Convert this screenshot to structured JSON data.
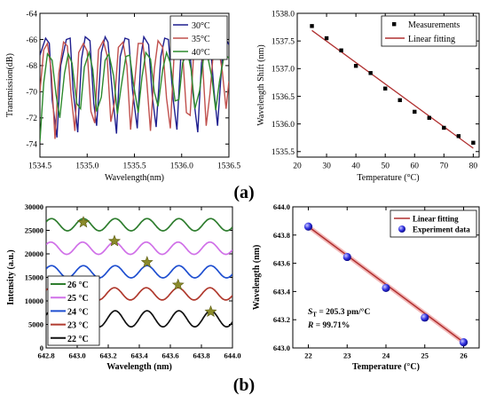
{
  "panel_labels": {
    "a": "(a)",
    "b": "(b)"
  },
  "chart_data": [
    {
      "id": "a1",
      "type": "line",
      "xlabel": "Wavelength(nm)",
      "ylabel": "Transmission(dB)",
      "xlim": [
        1534.5,
        1536.5
      ],
      "ylim": [
        -75,
        -64
      ],
      "xticks": [
        "1534.5",
        "1535.0",
        "1535.5",
        "1536.0",
        "1536.5"
      ],
      "xtick_values": [
        1534.5,
        1535.0,
        1535.5,
        1536.0,
        1536.5
      ],
      "yticks": [
        "-64",
        "-66",
        "-68",
        "-70",
        "-72",
        "-74"
      ],
      "ytick_values": [
        -64,
        -66,
        -68,
        -70,
        -72,
        -74
      ],
      "legend_position": "top-right",
      "series": [
        {
          "name": "30°C",
          "color": "#1f1f8f",
          "x": [
            1534.5,
            1534.56,
            1534.6,
            1534.63,
            1534.68,
            1534.72,
            1534.78,
            1534.82,
            1534.85,
            1534.9,
            1534.94,
            1534.98,
            1535.03,
            1535.07,
            1535.1,
            1535.15,
            1535.19,
            1535.22,
            1535.27,
            1535.31,
            1535.35,
            1535.4,
            1535.44,
            1535.48,
            1535.53,
            1535.57,
            1535.6,
            1535.65,
            1535.69,
            1535.73,
            1535.78,
            1535.82,
            1535.86,
            1535.91,
            1535.95,
            1535.99,
            1536.04,
            1536.08,
            1536.12,
            1536.17,
            1536.21,
            1536.25,
            1536.3,
            1536.34,
            1536.38,
            1536.43,
            1536.47,
            1536.5
          ],
          "y": [
            -67.2,
            -65.9,
            -66.3,
            -70.6,
            -73.5,
            -68.0,
            -66.0,
            -65.9,
            -69.8,
            -73.1,
            -67.5,
            -65.8,
            -66.1,
            -70.9,
            -72.6,
            -67.0,
            -65.8,
            -66.2,
            -70.3,
            -73.2,
            -67.3,
            -65.9,
            -66.0,
            -69.9,
            -72.8,
            -67.2,
            -65.8,
            -66.4,
            -70.4,
            -72.7,
            -67.3,
            -65.9,
            -66.0,
            -70.6,
            -72.9,
            -67.4,
            -65.8,
            -66.2,
            -70.1,
            -73.1,
            -67.8,
            -66.0,
            -65.9,
            -69.8,
            -72.6,
            -67.4,
            -66.0,
            -66.4
          ]
        },
        {
          "name": "35°C",
          "color": "#c0504d",
          "x": [
            1534.5,
            1534.54,
            1534.58,
            1534.62,
            1534.66,
            1534.7,
            1534.75,
            1534.79,
            1534.83,
            1534.87,
            1534.91,
            1534.96,
            1535.0,
            1535.04,
            1535.08,
            1535.12,
            1535.17,
            1535.21,
            1535.25,
            1535.29,
            1535.33,
            1535.38,
            1535.42,
            1535.46,
            1535.5,
            1535.54,
            1535.59,
            1535.63,
            1535.67,
            1535.71,
            1535.75,
            1535.8,
            1535.84,
            1535.88,
            1535.92,
            1535.96,
            1536.01,
            1536.05,
            1536.09,
            1536.13,
            1536.17,
            1536.22,
            1536.26,
            1536.3,
            1536.34,
            1536.38,
            1536.43,
            1536.47,
            1536.5
          ],
          "y": [
            -70.0,
            -66.8,
            -66.3,
            -68.4,
            -73.6,
            -68.6,
            -66.2,
            -66.5,
            -70.2,
            -73.0,
            -67.0,
            -66.3,
            -66.9,
            -71.5,
            -72.4,
            -66.8,
            -66.1,
            -67.2,
            -72.3,
            -70.8,
            -66.6,
            -66.2,
            -68.0,
            -72.9,
            -69.5,
            -66.3,
            -66.3,
            -69.1,
            -73.0,
            -68.3,
            -66.1,
            -66.6,
            -70.5,
            -72.8,
            -67.2,
            -66.0,
            -67.0,
            -71.6,
            -71.8,
            -66.7,
            -66.1,
            -67.6,
            -72.6,
            -70.1,
            -66.5,
            -66.2,
            -68.4,
            -71.3,
            -69.2
          ]
        },
        {
          "name": "40°C",
          "color": "#2e8b2e",
          "x": [
            1534.5,
            1534.54,
            1534.58,
            1534.63,
            1534.67,
            1534.71,
            1534.76,
            1534.8,
            1534.84,
            1534.89,
            1534.93,
            1534.97,
            1535.02,
            1535.06,
            1535.1,
            1535.15,
            1535.19,
            1535.23,
            1535.28,
            1535.32,
            1535.36,
            1535.41,
            1535.45,
            1535.49,
            1535.54,
            1535.58,
            1535.62,
            1535.67,
            1535.71,
            1535.75,
            1535.8,
            1535.84,
            1535.88,
            1535.93,
            1535.97,
            1536.01,
            1536.06,
            1536.1,
            1536.14,
            1536.19,
            1536.23,
            1536.27,
            1536.32,
            1536.36,
            1536.4,
            1536.45,
            1536.5
          ],
          "y": [
            -73.8,
            -69.3,
            -67.1,
            -67.6,
            -70.2,
            -72.0,
            -68.6,
            -67.1,
            -67.8,
            -70.9,
            -71.3,
            -68.1,
            -67.0,
            -68.3,
            -71.5,
            -70.4,
            -67.6,
            -67.1,
            -68.8,
            -71.7,
            -69.6,
            -67.3,
            -67.2,
            -69.4,
            -71.6,
            -68.9,
            -67.0,
            -67.5,
            -70.0,
            -71.1,
            -68.3,
            -67.0,
            -67.8,
            -70.7,
            -70.6,
            -67.8,
            -66.9,
            -68.3,
            -71.3,
            -69.9,
            -67.5,
            -67.1,
            -68.9,
            -71.4,
            -69.2,
            -67.2,
            -67.4
          ]
        }
      ]
    },
    {
      "id": "a2",
      "type": "scatter",
      "xlabel": "Temperature (°C)",
      "ylabel": "Wavelength Shift (nm)",
      "xlim": [
        20,
        82
      ],
      "ylim": [
        1535.4,
        1538.0
      ],
      "xticks": [
        "20",
        "30",
        "40",
        "50",
        "60",
        "70",
        "80"
      ],
      "xtick_values": [
        20,
        30,
        40,
        50,
        60,
        70,
        80
      ],
      "yticks": [
        "1538.0",
        "1537.5",
        "1537.0",
        "1536.5",
        "1536.0",
        "1535.5"
      ],
      "ytick_values": [
        1538.0,
        1537.5,
        1537.0,
        1536.5,
        1536.0,
        1535.5
      ],
      "legend_position": "top-right",
      "series": [
        {
          "name": "Measurements",
          "kind": "points",
          "color": "#000000",
          "x": [
            25,
            30,
            35,
            40,
            45,
            50,
            55,
            60,
            65,
            70,
            75,
            80
          ],
          "y": [
            1537.77,
            1537.55,
            1537.33,
            1537.05,
            1536.92,
            1536.64,
            1536.43,
            1536.22,
            1536.11,
            1535.93,
            1535.78,
            1535.66
          ]
        },
        {
          "name": "Linear fitting",
          "kind": "line",
          "color": "#b03030",
          "x": [
            25,
            80
          ],
          "y": [
            1537.69,
            1535.56
          ]
        }
      ]
    },
    {
      "id": "b1",
      "type": "line",
      "xlabel": "Wavelength (nm)",
      "ylabel": "Intensity (a.u.)",
      "xlim": [
        642.8,
        644.0
      ],
      "ylim": [
        0,
        30000
      ],
      "xticks": [
        "642.8",
        "643.0",
        "643.2",
        "643.4",
        "643.6",
        "643.8",
        "644.0"
      ],
      "xtick_values": [
        642.8,
        643.0,
        643.2,
        643.4,
        643.6,
        643.8,
        644.0
      ],
      "yticks": [
        "0",
        "5000",
        "10000",
        "15000",
        "20000",
        "25000",
        "30000"
      ],
      "ytick_values": [
        0,
        5000,
        10000,
        15000,
        20000,
        25000,
        30000
      ],
      "legend_position": "bottom-left",
      "period_nm": 0.205,
      "series": [
        {
          "name": "26 °C",
          "color": "#2e7d2e",
          "center": 26200,
          "amplitude": 1300,
          "peak_nm": 643.04
        },
        {
          "name": "25 °C",
          "color": "#d070e8",
          "center": 21200,
          "amplitude": 1300,
          "peak_nm": 643.24
        },
        {
          "name": "24 °C",
          "color": "#1f4fd0",
          "center": 16200,
          "amplitude": 1300,
          "peak_nm": 643.45
        },
        {
          "name": "23 °C",
          "color": "#b03a2e",
          "center": 11500,
          "amplitude": 1300,
          "peak_nm": 643.65
        },
        {
          "name": "22 °C",
          "color": "#111111",
          "center": 6200,
          "amplitude": 1700,
          "peak_nm": 643.86
        }
      ],
      "markers": {
        "kind": "star",
        "color": "#8a8a2a",
        "x": [
          643.04,
          643.24,
          643.45,
          643.65,
          643.86
        ],
        "y": [
          26700,
          22700,
          18200,
          13400,
          7700
        ]
      }
    },
    {
      "id": "b2",
      "type": "scatter",
      "xlabel": "Temperature (°C)",
      "ylabel": "Wavelength (nm)",
      "xlim": [
        21.6,
        26.4
      ],
      "ylim": [
        643.0,
        644.0
      ],
      "xticks": [
        "22",
        "23",
        "24",
        "25",
        "26"
      ],
      "xtick_values": [
        22,
        23,
        24,
        25,
        26
      ],
      "yticks": [
        "643.0",
        "643.2",
        "643.4",
        "643.6",
        "643.8",
        "644.0"
      ],
      "ytick_values": [
        643.0,
        643.2,
        643.4,
        643.6,
        643.8,
        644.0
      ],
      "legend_position": "top-right",
      "annotations": {
        "st": "S",
        "st_sub": "T",
        "st_rest": " = 205.3 pm/°C",
        "r": "R",
        "r_rest": " = 99.71%"
      },
      "series": [
        {
          "name": "Linear fitting",
          "kind": "line",
          "color": "#b03030",
          "x": [
            22,
            26
          ],
          "y": [
            643.86,
            643.04
          ]
        },
        {
          "name": "Experiment data",
          "kind": "points",
          "color": "#2a2ad8",
          "x": [
            22,
            23,
            24,
            25,
            26
          ],
          "y": [
            643.86,
            643.645,
            643.425,
            643.215,
            643.04
          ]
        }
      ]
    }
  ]
}
